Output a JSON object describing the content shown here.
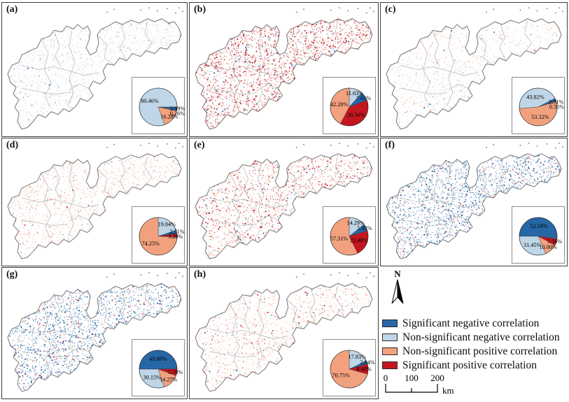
{
  "colors": {
    "sig_neg": "#2667a6",
    "nonsig_neg": "#bfd6e8",
    "nonsig_pos": "#f2a17e",
    "sig_pos": "#c4161f"
  },
  "panels": [
    {
      "label": "(a)"
    },
    {
      "label": "(b)"
    },
    {
      "label": "(c)"
    },
    {
      "label": "(d)"
    },
    {
      "label": "(e)"
    },
    {
      "label": "(f)"
    },
    {
      "label": "(g)"
    },
    {
      "label": "(h)"
    }
  ],
  "chart_data": [
    {
      "type": "pie",
      "panel": "(a)",
      "rotation": 90,
      "slices": [
        {
          "category": "sig_neg",
          "pct": 2.99
        },
        {
          "category": "sig_pos",
          "pct": 0.26
        },
        {
          "category": "nonsig_pos",
          "pct": 16.28
        },
        {
          "category": "nonsig_neg",
          "pct": 80.46
        }
      ]
    },
    {
      "type": "pie",
      "panel": "(b)",
      "rotation": 0,
      "slices": [
        {
          "category": "nonsig_neg",
          "pct": 11.63
        },
        {
          "category": "sig_neg",
          "pct": 7.61
        },
        {
          "category": "sig_pos",
          "pct": 38.56
        },
        {
          "category": "nonsig_pos",
          "pct": 42.2
        }
      ]
    },
    {
      "type": "pie",
      "panel": "(c)",
      "rotation": 265,
      "slices": [
        {
          "category": "nonsig_neg",
          "pct": 43.82
        },
        {
          "category": "sig_neg",
          "pct": 2.51
        },
        {
          "category": "sig_pos",
          "pct": 0.35
        },
        {
          "category": "nonsig_pos",
          "pct": 53.32
        }
      ]
    },
    {
      "type": "pie",
      "panel": "(d)",
      "rotation": 0,
      "slices": [
        {
          "category": "nonsig_neg",
          "pct": 19.84
        },
        {
          "category": "sig_neg",
          "pct": 2.71
        },
        {
          "category": "sig_pos",
          "pct": 3.2
        },
        {
          "category": "nonsig_pos",
          "pct": 74.25
        }
      ]
    },
    {
      "type": "pie",
      "panel": "(e)",
      "rotation": 0,
      "slices": [
        {
          "category": "nonsig_neg",
          "pct": 14.29
        },
        {
          "category": "sig_neg",
          "pct": 5.92
        },
        {
          "category": "sig_pos",
          "pct": 22.48
        },
        {
          "category": "nonsig_pos",
          "pct": 57.31
        }
      ]
    },
    {
      "type": "pie",
      "panel": "(f)",
      "rotation": 270,
      "slices": [
        {
          "category": "sig_neg",
          "pct": 52.18
        },
        {
          "category": "sig_pos",
          "pct": 5.56
        },
        {
          "category": "nonsig_pos",
          "pct": 10.8
        },
        {
          "category": "nonsig_neg",
          "pct": 31.45
        }
      ]
    },
    {
      "type": "pie",
      "panel": "(g)",
      "rotation": 270,
      "slices": [
        {
          "category": "sig_neg",
          "pct": 49.88
        },
        {
          "category": "sig_pos",
          "pct": 5.7
        },
        {
          "category": "nonsig_pos",
          "pct": 14.27
        },
        {
          "category": "nonsig_neg",
          "pct": 30.15
        }
      ]
    },
    {
      "type": "pie",
      "panel": "(h)",
      "rotation": 0,
      "slices": [
        {
          "category": "nonsig_neg",
          "pct": 17.83
        },
        {
          "category": "sig_neg",
          "pct": 2.94
        },
        {
          "category": "sig_pos",
          "pct": 8.48
        },
        {
          "category": "nonsig_pos",
          "pct": 70.75
        }
      ]
    }
  ],
  "legend": {
    "items": [
      {
        "key": "sig_neg",
        "label": "Significant negative correlation"
      },
      {
        "key": "nonsig_neg",
        "label": "Non-significant negative correlation"
      },
      {
        "key": "nonsig_pos",
        "label": "Non-significant positive correlation"
      },
      {
        "key": "sig_pos",
        "label": "Significant positive correlation"
      }
    ]
  },
  "north": {
    "label": "N"
  },
  "scale_bar": {
    "ticks": [
      "0",
      "100",
      "200"
    ],
    "unit": "km"
  }
}
